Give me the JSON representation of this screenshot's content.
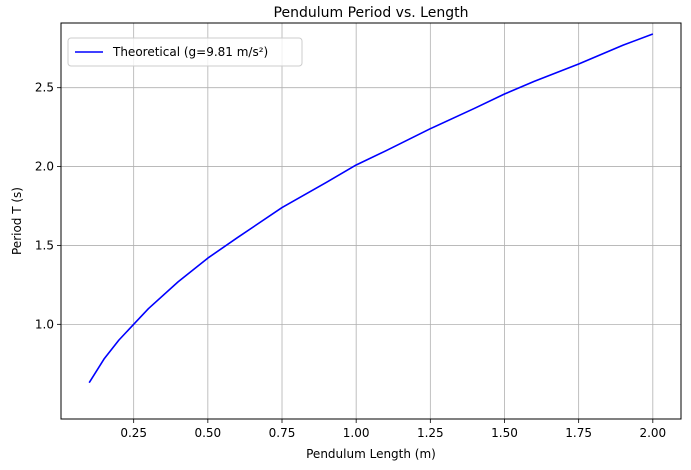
{
  "chart_data": {
    "type": "line",
    "title": "Pendulum Period vs. Length",
    "xlabel": "Pendulum Length (m)",
    "ylabel": "Period T (s)",
    "xlim": [
      0.005,
      2.095
    ],
    "ylim": [
      0.4,
      2.91
    ],
    "x_ticks": [
      0.25,
      0.5,
      0.75,
      1.0,
      1.25,
      1.5,
      1.75,
      2.0
    ],
    "x_tick_labels": [
      "0.25",
      "0.50",
      "0.75",
      "1.00",
      "1.25",
      "1.50",
      "1.75",
      "2.00"
    ],
    "y_ticks": [
      1.0,
      1.5,
      2.0,
      2.5
    ],
    "y_tick_labels": [
      "1.0",
      "1.5",
      "2.0",
      "2.5"
    ],
    "grid": true,
    "legend": "top-left",
    "series": [
      {
        "name": "Theoretical (g=9.81 m/s²)",
        "color": "#0000ff",
        "x": [
          0.1,
          0.15,
          0.2,
          0.25,
          0.3,
          0.4,
          0.5,
          0.6,
          0.75,
          0.9,
          1.0,
          1.1,
          1.25,
          1.4,
          1.5,
          1.6,
          1.75,
          1.9,
          2.0
        ],
        "y": [
          0.63,
          0.78,
          0.9,
          1.0,
          1.1,
          1.27,
          1.42,
          1.55,
          1.74,
          1.9,
          2.01,
          2.1,
          2.24,
          2.37,
          2.46,
          2.54,
          2.65,
          2.77,
          2.84
        ]
      }
    ]
  }
}
